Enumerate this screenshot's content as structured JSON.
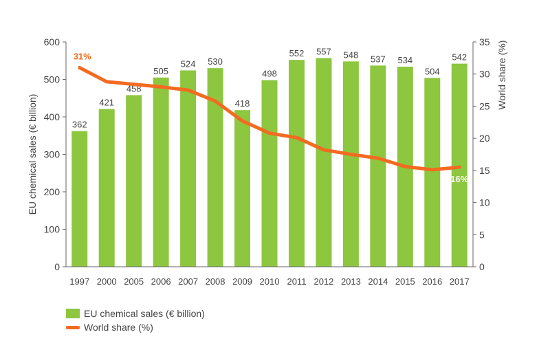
{
  "chart_data": {
    "type": "bar",
    "categories": [
      "1997",
      "2000",
      "2005",
      "2006",
      "2007",
      "2008",
      "2009",
      "2010",
      "2011",
      "2012",
      "2013",
      "2014",
      "2015",
      "2016",
      "2017"
    ],
    "series": [
      {
        "name": "EU chemical sales (€ billion)",
        "type": "bar",
        "axis": "left",
        "color": "#8dc63f",
        "values": [
          362,
          421,
          458,
          505,
          524,
          530,
          418,
          498,
          552,
          557,
          548,
          537,
          534,
          504,
          542
        ],
        "labels": [
          "362",
          "421",
          "458",
          "505",
          "524",
          "530",
          "418",
          "498",
          "552",
          "557",
          "548",
          "537",
          "534",
          "504",
          "542"
        ]
      },
      {
        "name": "World share (%)",
        "type": "line",
        "axis": "right",
        "color": "#f26b21",
        "values": [
          31,
          28.8,
          28.4,
          28.0,
          27.5,
          25.8,
          22.7,
          20.8,
          20.1,
          18.2,
          17.5,
          16.9,
          15.6,
          15.1,
          15.5
        ],
        "point_labels": [
          {
            "index": 0,
            "text": "31%",
            "color": "#f26b21"
          },
          {
            "index": 14,
            "text": "16%",
            "color": "#ffffff"
          }
        ]
      }
    ],
    "ylabel": "EU chemical sales (€ billion)",
    "ylim": [
      0,
      600
    ],
    "yticks": [
      "0",
      "100",
      "200",
      "300",
      "400",
      "500",
      "600"
    ],
    "y2label": "World share (%)",
    "y2lim": [
      0,
      35
    ],
    "y2ticks": [
      "0",
      "5",
      "10",
      "15",
      "20",
      "25",
      "30",
      "35"
    ],
    "grid": false,
    "legend_position": "bottom-left",
    "legend": [
      {
        "label": "EU chemical sales (€ billion)",
        "kind": "bar",
        "color": "#8dc63f"
      },
      {
        "label": "World share (%)",
        "kind": "line",
        "color": "#f26b21"
      }
    ],
    "text_color": "#444444",
    "axis_color": "#666666"
  }
}
